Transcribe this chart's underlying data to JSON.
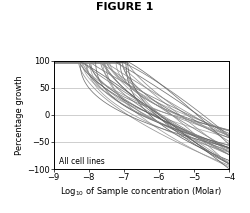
{
  "title": "FIGURE 1",
  "xlabel": "Log$_{10}$ of Sample concentration (Molar)",
  "ylabel": "Percentage growth",
  "xlim": [
    -9,
    -4
  ],
  "ylim": [
    -100,
    100
  ],
  "xticks": [
    -9,
    -8,
    -7,
    -6,
    -5,
    -4
  ],
  "yticks": [
    -100,
    -50,
    0,
    50,
    100
  ],
  "annotation": "All cell lines",
  "background_color": "#ffffff",
  "num_curves": 36,
  "grid_color": "#bbbbbb",
  "grid_linewidth": 0.5
}
